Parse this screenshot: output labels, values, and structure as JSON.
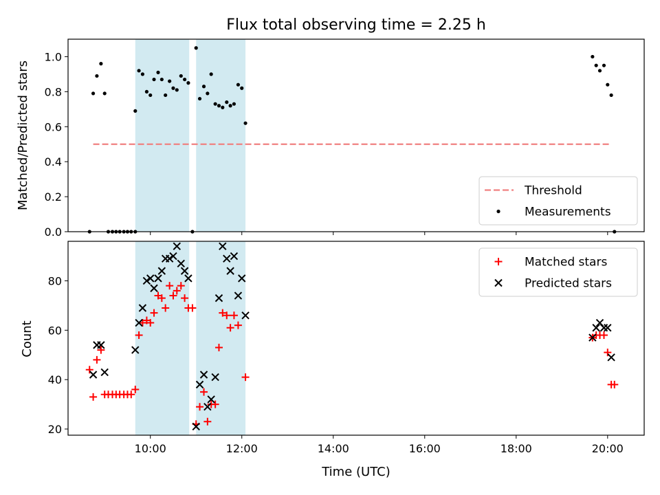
{
  "chart_data": {
    "title": "Flux total observing time = 2.25 h",
    "xlabel": "Time (UTC)",
    "x_unit": "hours UTC",
    "xlim": [
      8.2,
      20.8
    ],
    "xticks": [
      {
        "value": 10,
        "label": "10:00"
      },
      {
        "value": 12,
        "label": "12:00"
      },
      {
        "value": 14,
        "label": "14:00"
      },
      {
        "value": 16,
        "label": "16:00"
      },
      {
        "value": 18,
        "label": "18:00"
      },
      {
        "value": 20,
        "label": "20:00"
      }
    ],
    "observing_windows": [
      [
        9.67,
        10.85
      ],
      [
        11.0,
        12.08
      ]
    ],
    "window_color": "#add8e6",
    "panels": [
      {
        "type": "scatter",
        "ylabel": "Matched/Predicted stars",
        "ylim": [
          0,
          1.1
        ],
        "yticks": [
          "0.0",
          "0.2",
          "0.4",
          "0.6",
          "0.8",
          "1.0"
        ],
        "legend_position": "lower-right",
        "series": [
          {
            "name": "Threshold",
            "kind": "dashed-line",
            "color": "#f08080",
            "x": [
              8.75,
              20.08
            ],
            "y": [
              0.5,
              0.5
            ]
          },
          {
            "name": "Measurements",
            "kind": "dot",
            "color": "#000000",
            "x": [
              8.67,
              8.75,
              8.83,
              8.92,
              9.0,
              9.08,
              9.17,
              9.25,
              9.33,
              9.42,
              9.5,
              9.58,
              9.67,
              9.67,
              9.75,
              9.83,
              9.92,
              10.0,
              10.08,
              10.17,
              10.25,
              10.33,
              10.42,
              10.5,
              10.58,
              10.67,
              10.75,
              10.83,
              10.92,
              11.0,
              11.08,
              11.17,
              11.25,
              11.33,
              11.42,
              11.5,
              11.58,
              11.67,
              11.75,
              11.83,
              11.92,
              12.0,
              12.08,
              19.67,
              19.75,
              19.83,
              19.92,
              20.0,
              20.08,
              20.15
            ],
            "y": [
              0.0,
              0.79,
              0.89,
              0.96,
              0.79,
              0.0,
              0.0,
              0.0,
              0.0,
              0.0,
              0.0,
              0.0,
              0.0,
              0.69,
              0.92,
              0.9,
              0.8,
              0.78,
              0.87,
              0.91,
              0.87,
              0.78,
              0.86,
              0.82,
              0.81,
              0.89,
              0.87,
              0.85,
              0.0,
              1.05,
              0.76,
              0.83,
              0.79,
              0.9,
              0.73,
              0.72,
              0.71,
              0.74,
              0.72,
              0.73,
              0.84,
              0.82,
              0.62,
              1.0,
              0.95,
              0.92,
              0.95,
              0.84,
              0.78,
              0.0
            ]
          }
        ]
      },
      {
        "type": "scatter",
        "ylabel": "Count",
        "ylim": [
          17.5,
          96
        ],
        "yticks": [
          "20",
          "40",
          "60",
          "80"
        ],
        "legend_position": "upper-right",
        "series": [
          {
            "name": "Matched stars",
            "kind": "plus",
            "color": "#ff0000",
            "x": [
              8.67,
              8.75,
              8.83,
              8.92,
              9.0,
              9.08,
              9.17,
              9.25,
              9.33,
              9.42,
              9.5,
              9.58,
              9.67,
              9.75,
              9.83,
              9.92,
              10.0,
              10.08,
              10.17,
              10.25,
              10.33,
              10.42,
              10.5,
              10.58,
              10.67,
              10.75,
              10.83,
              10.92,
              11.0,
              11.08,
              11.17,
              11.25,
              11.33,
              11.42,
              11.5,
              11.58,
              11.67,
              11.75,
              11.83,
              11.92,
              12.08,
              19.67,
              19.75,
              19.83,
              19.92,
              20.0,
              20.08,
              20.15
            ],
            "y": [
              44,
              33,
              48,
              52,
              34,
              34,
              34,
              34,
              34,
              34,
              34,
              34,
              36,
              58,
              63,
              64,
              63,
              67,
              74,
              73,
              69,
              78,
              74,
              76,
              78,
              73,
              69,
              69,
              22,
              29,
              35,
              23,
              30,
              30,
              53,
              67,
              66,
              61,
              66,
              62,
              41,
              57,
              58,
              58,
              58,
              51,
              38,
              38
            ]
          },
          {
            "name": "Predicted stars",
            "kind": "cross",
            "color": "#000000",
            "x": [
              8.75,
              8.83,
              8.92,
              9.0,
              9.67,
              9.75,
              9.83,
              9.92,
              10.0,
              10.08,
              10.17,
              10.25,
              10.33,
              10.42,
              10.5,
              10.58,
              10.67,
              10.75,
              10.83,
              11.0,
              11.08,
              11.17,
              11.25,
              11.33,
              11.42,
              11.5,
              11.58,
              11.67,
              11.75,
              11.83,
              11.92,
              12.0,
              12.08,
              19.67,
              19.75,
              19.83,
              19.92,
              20.0,
              20.08
            ],
            "y": [
              42,
              54,
              54,
              43,
              52,
              63,
              69,
              80,
              81,
              77,
              81,
              84,
              89,
              89,
              90,
              94,
              87,
              84,
              81,
              21,
              38,
              42,
              29,
              32,
              41,
              73,
              94,
              89,
              84,
              90,
              74,
              81,
              66,
              57,
              61,
              63,
              61,
              61,
              49
            ]
          }
        ]
      }
    ]
  }
}
